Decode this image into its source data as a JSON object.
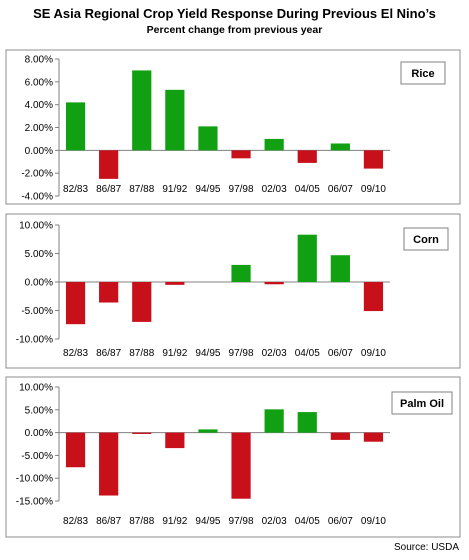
{
  "title": "SE Asia Regional Crop Yield Response During Previous El Nino’s",
  "subtitle": "Percent change  from previous year",
  "source": "Source: USDA",
  "colors": {
    "positive": "#11a011",
    "negative": "#c8101a"
  },
  "chart_data": [
    {
      "type": "bar",
      "legend": "Rice",
      "legend_position": "top-right",
      "categories": [
        "82/83",
        "86/87",
        "87/88",
        "91/92",
        "94/95",
        "97/98",
        "02/03",
        "04/05",
        "06/07",
        "09/10"
      ],
      "values": [
        4.2,
        -2.5,
        7.0,
        5.3,
        2.1,
        -0.7,
        1.0,
        -1.1,
        0.6,
        -1.6
      ],
      "ylim": [
        -4,
        8
      ],
      "yticks": [
        8,
        6,
        4,
        2,
        0,
        -2,
        -4
      ],
      "ytick_labels": [
        "8.00%",
        "6.00%",
        "4.00%",
        "2.00%",
        "0.00%",
        "-2.00%",
        "-4.00%"
      ],
      "grid": false
    },
    {
      "type": "bar",
      "legend": "Corn",
      "legend_position": "top-right",
      "categories": [
        "82/83",
        "86/87",
        "87/88",
        "91/92",
        "94/95",
        "97/98",
        "02/03",
        "04/05",
        "06/07",
        "09/10"
      ],
      "values": [
        -7.4,
        -3.6,
        -7.0,
        -0.5,
        0.0,
        3.0,
        -0.4,
        8.3,
        4.7,
        -5.1
      ],
      "ylim": [
        -10,
        10
      ],
      "yticks": [
        10,
        5,
        0,
        -5,
        -10
      ],
      "ytick_labels": [
        "10.00%",
        "5.00%",
        "0.00%",
        "-5.00%",
        "-10.00%"
      ],
      "grid": false
    },
    {
      "type": "bar",
      "legend": "Palm Oil",
      "legend_position": "top-right",
      "categories": [
        "82/83",
        "86/87",
        "87/88",
        "91/92",
        "94/95",
        "97/98",
        "02/03",
        "04/05",
        "06/07",
        "09/10"
      ],
      "values": [
        -7.6,
        -13.8,
        -0.3,
        -3.4,
        0.7,
        -14.5,
        5.1,
        4.5,
        -1.6,
        -2.0
      ],
      "ylim": [
        -15,
        10
      ],
      "yticks": [
        10,
        5,
        0,
        -5,
        -10,
        -15
      ],
      "ytick_labels": [
        "10.00%",
        "5.00%",
        "0.00%",
        "-5.00%",
        "-10.00%",
        "-15.00%"
      ],
      "grid": false
    }
  ]
}
